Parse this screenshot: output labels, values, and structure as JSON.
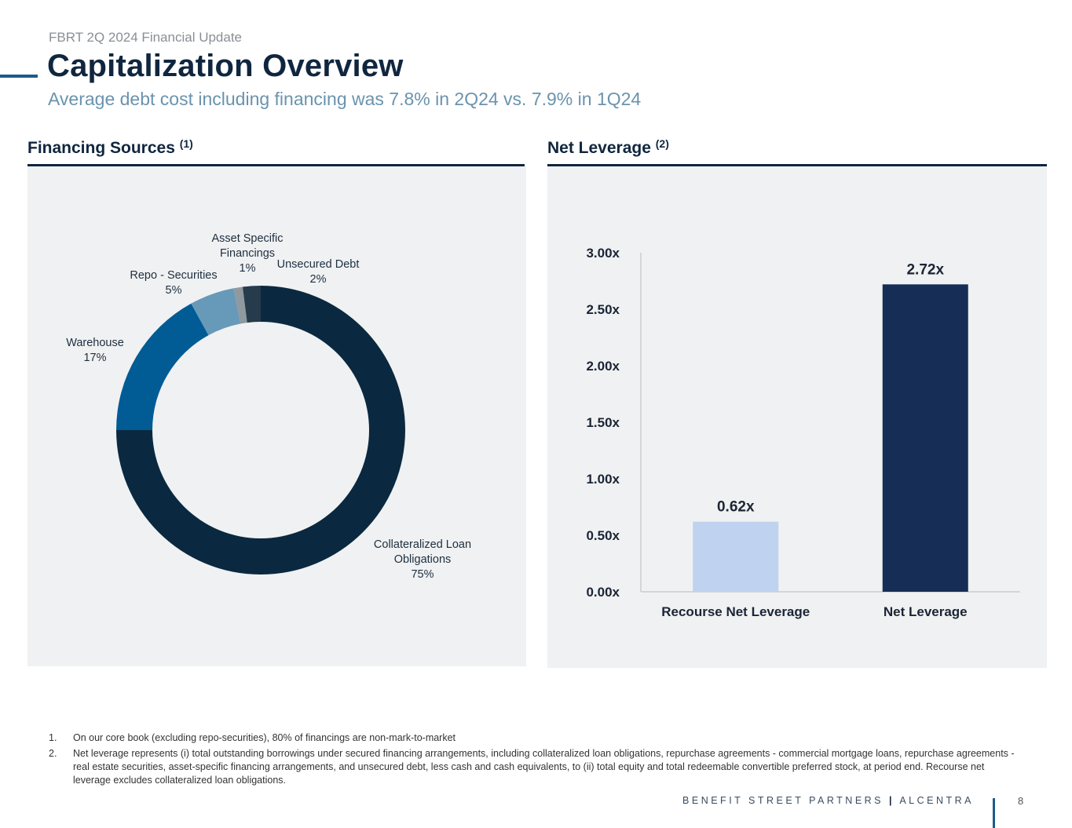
{
  "header": {
    "eyebrow": "FBRT 2Q 2024 Financial Update",
    "title": "Capitalization Overview",
    "subtitle": "Average debt cost including financing was 7.8% in 2Q24 vs. 7.9% in 1Q24"
  },
  "sections": {
    "left": {
      "title": "Financing Sources",
      "note": "(1)"
    },
    "right": {
      "title": "Net Leverage",
      "note": "(2)"
    }
  },
  "colors": {
    "navy": "#0a2940",
    "blue": "#015b94",
    "steel": "#6799b8",
    "gray": "#8f999e",
    "slate": "#263b4c",
    "bar_light": "#bfd2f0",
    "bar_dark": "#162d56"
  },
  "chart_data": [
    {
      "type": "pie",
      "style": "donut",
      "title": "Financing Sources",
      "slices": [
        {
          "label": "Collateralized Loan Obligations",
          "label_lines": [
            "Collateralized Loan",
            "Obligations"
          ],
          "value": 75,
          "display": "75%"
        },
        {
          "label": "Warehouse",
          "label_lines": [
            "Warehouse"
          ],
          "value": 17,
          "display": "17%"
        },
        {
          "label": "Repo - Securities",
          "label_lines": [
            "Repo - Securities"
          ],
          "value": 5,
          "display": "5%"
        },
        {
          "label": "Asset Specific Financings",
          "label_lines": [
            "Asset Specific",
            "Financings"
          ],
          "value": 1,
          "display": "1%"
        },
        {
          "label": "Unsecured Debt",
          "label_lines": [
            "Unsecured Debt"
          ],
          "value": 2,
          "display": "2%"
        }
      ]
    },
    {
      "type": "bar",
      "title": "Net Leverage",
      "categories": [
        "Recourse Net Leverage",
        "Net Leverage"
      ],
      "values": [
        0.62,
        2.72
      ],
      "value_labels": [
        "0.62x",
        "2.72x"
      ],
      "yticks": [
        "0.00x",
        "0.50x",
        "1.00x",
        "1.50x",
        "2.00x",
        "2.50x",
        "3.00x"
      ],
      "ylim": [
        0,
        3
      ],
      "xlabel": "",
      "ylabel": "",
      "grid": false
    }
  ],
  "footnotes": [
    {
      "num": "1.",
      "text": "On our core book (excluding repo-securities), 80% of financings are non-mark-to-market"
    },
    {
      "num": "2.",
      "text": "Net leverage represents (i) total outstanding borrowings under secured financing arrangements, including collateralized loan obligations, repurchase agreements - commercial mortgage loans, repurchase agreements - real estate securities, asset-specific financing arrangements, and unsecured debt, less cash and cash equivalents, to (ii) total equity and total redeemable convertible preferred stock, at period end. Recourse net leverage excludes collateralized loan obligations."
    }
  ],
  "footer": {
    "brand_left": "BENEFIT STREET PARTNERS",
    "separator": "|",
    "brand_right": "ALCENTRA",
    "page": "8"
  }
}
